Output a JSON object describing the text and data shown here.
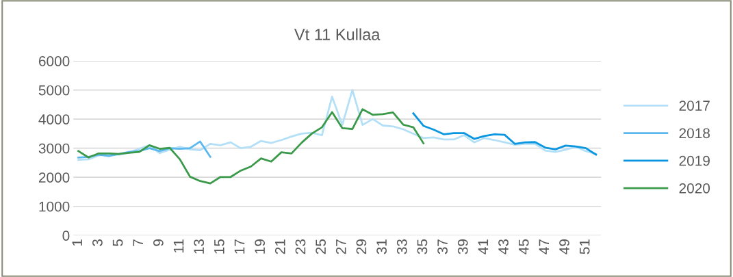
{
  "chart_data": {
    "type": "line",
    "title": "Vt 11 Kullaa",
    "categories": [
      "1",
      null,
      "3",
      null,
      "5",
      null,
      "7",
      null,
      "9",
      null,
      "11",
      null,
      "13",
      null,
      "15",
      null,
      "17",
      null,
      "19",
      null,
      "21",
      null,
      "23",
      null,
      "25",
      null,
      "27",
      null,
      "29",
      null,
      "31",
      null,
      "33",
      null,
      "35",
      null,
      "37",
      null,
      "39",
      null,
      "41",
      null,
      "43",
      null,
      "45",
      null,
      "47",
      null,
      "49",
      null,
      "51",
      null
    ],
    "series": [
      {
        "name": "2017",
        "color": "#b4e0f7",
        "values": [
          2600,
          2620,
          2750,
          2800,
          2780,
          2850,
          2980,
          3100,
          2830,
          2950,
          3050,
          2960,
          2930,
          3150,
          3100,
          3200,
          3000,
          3050,
          3250,
          3180,
          3280,
          3400,
          3500,
          3530,
          3450,
          4770,
          3800,
          5000,
          3800,
          4000,
          3780,
          3750,
          3650,
          3500,
          3350,
          3370,
          3300,
          3300,
          3450,
          3200,
          3350,
          3280,
          3200,
          3120,
          3150,
          3150,
          2920,
          2870,
          2950,
          3050,
          2900,
          2800
        ]
      },
      {
        "name": "2018",
        "color": "#5bb8ee",
        "values": [
          2680,
          2700,
          2780,
          2730,
          2800,
          2870,
          2900,
          3000,
          2900,
          3000,
          2980,
          3000,
          3230,
          2700,
          null,
          null,
          null,
          null,
          null,
          null,
          null,
          null,
          null,
          null,
          null,
          null,
          null,
          null,
          null,
          null,
          null,
          null,
          null,
          null,
          null,
          null,
          null,
          null,
          null,
          null,
          null,
          null,
          null,
          null,
          null,
          null,
          null,
          null,
          null,
          null,
          null,
          null
        ]
      },
      {
        "name": "2019",
        "color": "#0a96e0",
        "values": [
          null,
          null,
          null,
          null,
          null,
          null,
          null,
          null,
          null,
          null,
          null,
          null,
          null,
          null,
          null,
          null,
          null,
          null,
          null,
          null,
          null,
          null,
          null,
          null,
          null,
          null,
          null,
          null,
          null,
          null,
          null,
          null,
          null,
          4200,
          3770,
          3640,
          3480,
          3520,
          3520,
          3320,
          3420,
          3480,
          3460,
          3150,
          3200,
          3210,
          3020,
          2960,
          3090,
          3060,
          3000,
          2780
        ]
      },
      {
        "name": "2020",
        "color": "#3a9a4a",
        "values": [
          2900,
          2680,
          2820,
          2820,
          2800,
          2840,
          2870,
          3100,
          2980,
          3010,
          2620,
          2020,
          1870,
          1790,
          2010,
          2010,
          2230,
          2370,
          2650,
          2540,
          2860,
          2820,
          3190,
          3500,
          3720,
          4240,
          3690,
          3660,
          4340,
          4150,
          4170,
          4230,
          3810,
          3720,
          3170,
          null,
          null,
          null,
          null,
          null,
          null,
          null,
          null,
          null,
          null,
          null,
          null,
          null,
          null,
          null,
          null,
          null
        ]
      }
    ],
    "ylim": [
      0,
      6000
    ],
    "yticks": [
      0,
      1000,
      2000,
      3000,
      4000,
      5000,
      6000
    ],
    "grid": "y",
    "legend": "right"
  }
}
